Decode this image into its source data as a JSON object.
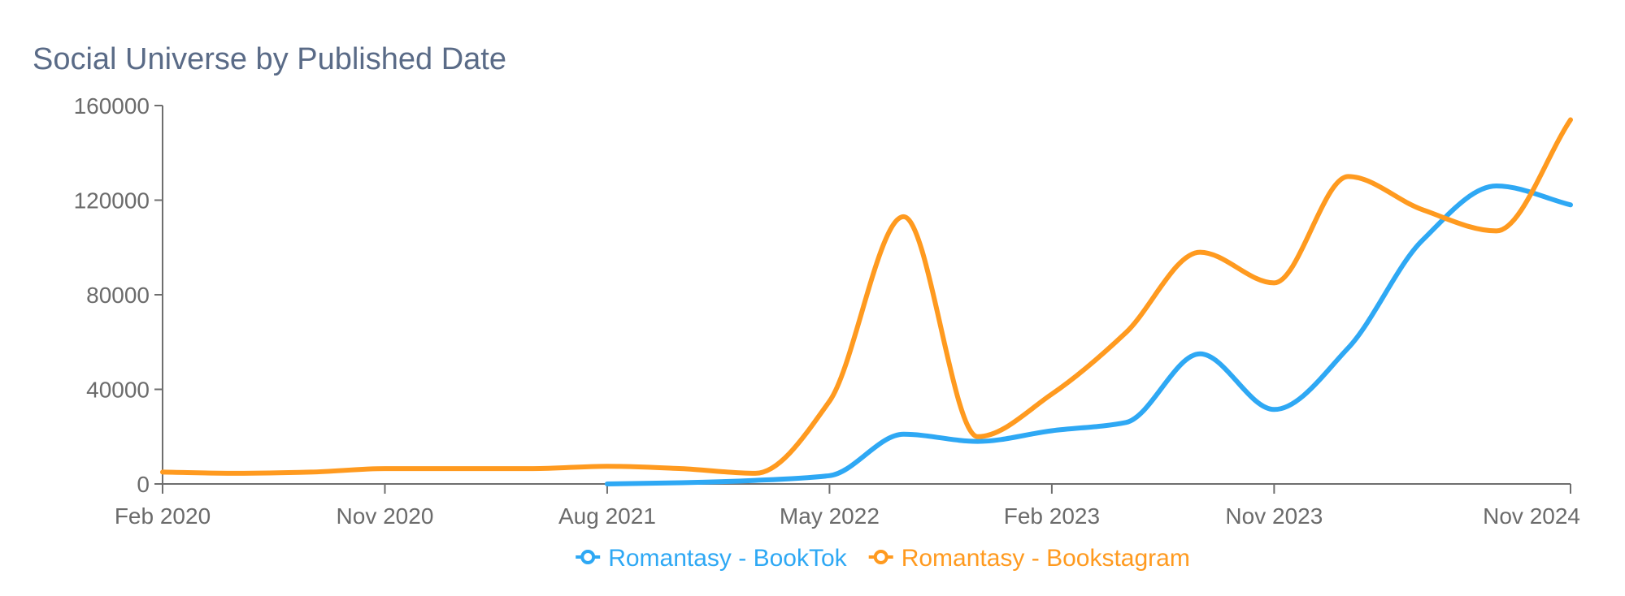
{
  "chart_data": {
    "type": "line",
    "title": "Social Universe by Published Date",
    "xlabel": "",
    "ylabel": "",
    "x_ticks": [
      "Feb 2020",
      "Nov 2020",
      "Aug 2021",
      "May 2022",
      "Feb 2023",
      "Nov 2023",
      "Nov 2024"
    ],
    "x_tick_dates": [
      "2020-02",
      "2020-11",
      "2021-08",
      "2022-05",
      "2023-02",
      "2023-11",
      "2024-11"
    ],
    "x_range": [
      "2020-02",
      "2024-11"
    ],
    "y_ticks": [
      "0",
      "40000",
      "80000",
      "120000",
      "160000"
    ],
    "ylim": [
      0,
      160000
    ],
    "grid": false,
    "legend_position": "bottom",
    "series": [
      {
        "name": "Romantasy - BookTok",
        "color": "#2ea8f4",
        "points": [
          {
            "x": "2021-08",
            "y": 0
          },
          {
            "x": "2021-11",
            "y": 500
          },
          {
            "x": "2022-02",
            "y": 1500
          },
          {
            "x": "2022-05",
            "y": 3500
          },
          {
            "x": "2022-08",
            "y": 21000
          },
          {
            "x": "2022-11",
            "y": 18000
          },
          {
            "x": "2023-02",
            "y": 22500
          },
          {
            "x": "2023-05",
            "y": 26000
          },
          {
            "x": "2023-08",
            "y": 55000
          },
          {
            "x": "2023-11",
            "y": 31500
          },
          {
            "x": "2024-02",
            "y": 57500
          },
          {
            "x": "2024-05",
            "y": 103000
          },
          {
            "x": "2024-08",
            "y": 126000
          },
          {
            "x": "2024-11",
            "y": 118000
          }
        ]
      },
      {
        "name": "Romantasy - Bookstagram",
        "color": "#ff9a1f",
        "points": [
          {
            "x": "2020-02",
            "y": 5000
          },
          {
            "x": "2020-05",
            "y": 4500
          },
          {
            "x": "2020-08",
            "y": 5000
          },
          {
            "x": "2020-11",
            "y": 6500
          },
          {
            "x": "2021-02",
            "y": 6500
          },
          {
            "x": "2021-05",
            "y": 6500
          },
          {
            "x": "2021-08",
            "y": 7500
          },
          {
            "x": "2021-11",
            "y": 6500
          },
          {
            "x": "2022-02",
            "y": 4500
          },
          {
            "x": "2022-05",
            "y": 35000
          },
          {
            "x": "2022-08",
            "y": 113000
          },
          {
            "x": "2022-11",
            "y": 20000
          },
          {
            "x": "2023-02",
            "y": 38000
          },
          {
            "x": "2023-05",
            "y": 64000
          },
          {
            "x": "2023-08",
            "y": 98000
          },
          {
            "x": "2023-11",
            "y": 85000
          },
          {
            "x": "2024-02",
            "y": 130000
          },
          {
            "x": "2024-05",
            "y": 116000
          },
          {
            "x": "2024-08",
            "y": 107000
          },
          {
            "x": "2024-11",
            "y": 154000
          }
        ]
      }
    ]
  }
}
